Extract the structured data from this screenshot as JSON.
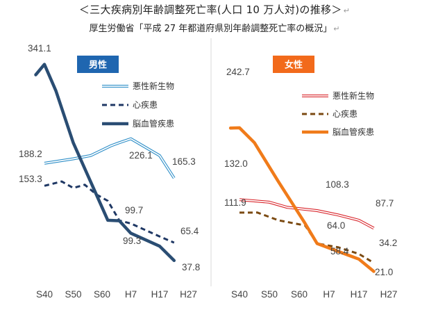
{
  "title": "＜三大疾病別年齢調整死亡率(人口 10 万人対)の推移＞",
  "subtitle": "厚生労働省「平成 27 年都道府県別年齢調整死亡率の概況」",
  "colors": {
    "male_cancer": "#2f8fc8",
    "male_heart": "#1f3864",
    "male_stroke": "#2a4d73",
    "female_cancer": "#d9262c",
    "female_heart": "#7b4a12",
    "female_stroke": "#f07b1a",
    "male_badge": "#1f66b0",
    "female_badge": "#f26a1b"
  },
  "chart_data": [
    {
      "type": "line",
      "badge": "男性",
      "categories": [
        "S40",
        "S50",
        "S60",
        "H7",
        "H17",
        "H27"
      ],
      "ylim": [
        0,
        360
      ],
      "series": [
        {
          "name": "悪性新生物",
          "values": [
            188.2,
            195,
            200,
            215,
            220,
            226.1,
            200,
            165.3
          ],
          "x": [
            0,
            1,
            1.6,
            2.3,
            2.6,
            3.0,
            4.0,
            4.5
          ]
        },
        {
          "name": "心疾患",
          "values": [
            153.3,
            160,
            150,
            155,
            140,
            130,
            99.7,
            95,
            75,
            65.4
          ],
          "x": [
            0,
            0.6,
            1.0,
            1.4,
            1.8,
            2.2,
            2.6,
            3.0,
            4.0,
            4.5
          ]
        },
        {
          "name": "脳血管疾患",
          "values": [
            325,
            341.1,
            300,
            220,
            160,
            100,
            99.3,
            80,
            60,
            37.8
          ],
          "x": [
            -0.3,
            0,
            0.4,
            1.0,
            1.6,
            2.2,
            2.6,
            3.0,
            4.0,
            4.5
          ]
        }
      ],
      "labels": [
        {
          "text": "341.1",
          "series": 2,
          "point": 1
        },
        {
          "text": "188.2",
          "series": 0,
          "point": 0
        },
        {
          "text": "226.1",
          "series": 0,
          "point": 5
        },
        {
          "text": "165.3",
          "series": 0,
          "point": 7
        },
        {
          "text": "153.3",
          "series": 1,
          "point": 0
        },
        {
          "text": "99.7",
          "series": 1,
          "point": 6
        },
        {
          "text": "65.4",
          "series": 1,
          "point": 9
        },
        {
          "text": "99.3",
          "series": 2,
          "point": 6
        },
        {
          "text": "37.8",
          "series": 2,
          "point": 9
        }
      ]
    },
    {
      "type": "line",
      "badge": "女性",
      "categories": [
        "S40",
        "S50",
        "S60",
        "H7",
        "H17",
        "H27"
      ],
      "ylim": [
        0,
        360
      ],
      "series": [
        {
          "name": "悪性新生物",
          "values": [
            132.0,
            128,
            120,
            115,
            108.3,
            100,
            87.7
          ],
          "x": [
            0,
            1.0,
            1.6,
            2.6,
            3.3,
            4.0,
            4.5
          ]
        },
        {
          "name": "心疾患",
          "values": [
            111.9,
            112,
            100,
            92,
            64.0,
            58.4,
            48,
            34.2
          ],
          "x": [
            0,
            0.6,
            1.3,
            2.2,
            2.6,
            3.3,
            4.0,
            4.5
          ]
        },
        {
          "name": "脳血管疾患",
          "values": [
            242.7,
            243,
            220,
            160,
            95,
            64.0,
            40,
            21.0
          ],
          "x": [
            -0.3,
            0,
            0.5,
            1.3,
            2.2,
            2.6,
            4.0,
            4.5
          ]
        }
      ],
      "labels": [
        {
          "text": "242.7",
          "series": 2,
          "point": 1
        },
        {
          "text": "132.0",
          "series": 0,
          "point": 0
        },
        {
          "text": "108.3",
          "series": 0,
          "point": 4
        },
        {
          "text": "87.7",
          "series": 0,
          "point": 6
        },
        {
          "text": "111.9",
          "series": 1,
          "point": 0
        },
        {
          "text": "64.0",
          "series": 1,
          "point": 4
        },
        {
          "text": "34.2",
          "series": 1,
          "point": 7
        },
        {
          "text": "58.4",
          "series": 1,
          "point": 5
        },
        {
          "text": "21.0",
          "series": 2,
          "point": 7
        }
      ]
    }
  ]
}
